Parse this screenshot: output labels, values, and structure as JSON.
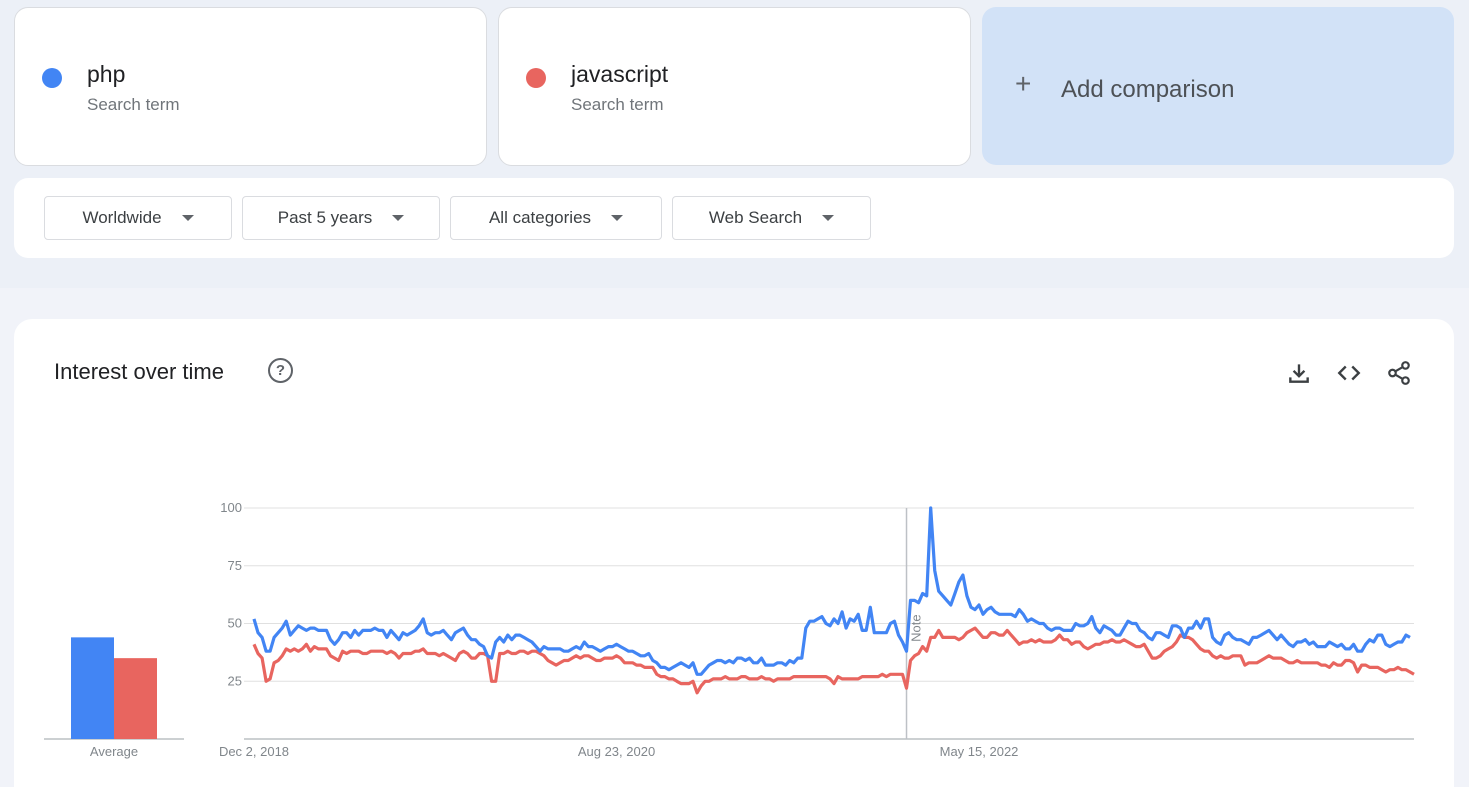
{
  "terms": [
    {
      "name": "php",
      "subtitle": "Search term",
      "color": "#4285f4"
    },
    {
      "name": "javascript",
      "subtitle": "Search term",
      "color": "#e8655f"
    }
  ],
  "add_comparison": {
    "icon": "plus-icon",
    "label": "Add comparison"
  },
  "filters": {
    "region": "Worldwide",
    "time": "Past 5 years",
    "category": "All categories",
    "search_type": "Web Search"
  },
  "chart_section": {
    "title": "Interest over time",
    "icons": [
      "help-icon",
      "download-icon",
      "embed-icon",
      "share-icon"
    ],
    "note_label": "Note"
  },
  "chart_data": {
    "type": "line",
    "title": "Interest over time",
    "x_ticks": [
      "Dec 2, 2018",
      "Aug 23, 2020",
      "May 15, 2022"
    ],
    "x_range": [
      "Dec 2, 2018",
      "Nov 2023"
    ],
    "ylim": [
      0,
      100
    ],
    "y_ticks": [
      25,
      50,
      75,
      100
    ],
    "grid": true,
    "note_marker_date": "Jan 2022",
    "average": {
      "label": "Average",
      "values": {
        "php": 44,
        "javascript": 35
      }
    },
    "series": [
      {
        "name": "php",
        "color": "#4285f4",
        "values": [
          52,
          46,
          44,
          38,
          38,
          44,
          46,
          48,
          51,
          45,
          47,
          49,
          48,
          47,
          48,
          48,
          47,
          47,
          47,
          43,
          41,
          43,
          46,
          46,
          44,
          47,
          45,
          47,
          47,
          47,
          48,
          47,
          47,
          44,
          47,
          45,
          43,
          46,
          45,
          46,
          47,
          49,
          52,
          46,
          45,
          46,
          46,
          47,
          45,
          43,
          46,
          47,
          48,
          45,
          43,
          43,
          41,
          40,
          36,
          35,
          42,
          44,
          42,
          45,
          43,
          45,
          45,
          44,
          43,
          42,
          40,
          38,
          40,
          39,
          39,
          39,
          39,
          38,
          38,
          39,
          40,
          39,
          42,
          40,
          40,
          39,
          38,
          39,
          40,
          40,
          41,
          40,
          39,
          38,
          38,
          37,
          36,
          36,
          37,
          34,
          33,
          31,
          31,
          30,
          31,
          32,
          33,
          32,
          31,
          33,
          28,
          28,
          30,
          32,
          33,
          34,
          34,
          33,
          34,
          33,
          35,
          35,
          34,
          35,
          33,
          33,
          35,
          32,
          32,
          32,
          33,
          33,
          32,
          34,
          33,
          35,
          35,
          48,
          51,
          51,
          52,
          53,
          50,
          49,
          52,
          50,
          55,
          48,
          52,
          51,
          54,
          47,
          47,
          57,
          46,
          46,
          46,
          46,
          50,
          51,
          45,
          42,
          38,
          60,
          60,
          59,
          63,
          62,
          100,
          73,
          64,
          62,
          60,
          58,
          63,
          68,
          71,
          62,
          57,
          56,
          58,
          54,
          56,
          57,
          55,
          54,
          54,
          54,
          54,
          53,
          56,
          54,
          51,
          52,
          51,
          50,
          50,
          48,
          47,
          48,
          48,
          47,
          47,
          47,
          50,
          49,
          49,
          50,
          53,
          48,
          46,
          49,
          48,
          47,
          45,
          45,
          48,
          51,
          50,
          50,
          47,
          46,
          44,
          43,
          46,
          46,
          45,
          44,
          49,
          49,
          48,
          44,
          48,
          48,
          51,
          48,
          52,
          52,
          44,
          42,
          41,
          45,
          46,
          44,
          43,
          43,
          42,
          41,
          44,
          44,
          45,
          46,
          47,
          45,
          43,
          45,
          43,
          41,
          40,
          42,
          42,
          43,
          41,
          42,
          40,
          40,
          40,
          42,
          41,
          40,
          41,
          39,
          39,
          41,
          38,
          38,
          41,
          43,
          42,
          45,
          45,
          41,
          40,
          41,
          42,
          42,
          45,
          44
        ]
      },
      {
        "name": "javascript",
        "color": "#e8655f",
        "values": [
          41,
          37,
          35,
          25,
          26,
          33,
          34,
          36,
          39,
          38,
          39,
          38,
          39,
          41,
          38,
          40,
          39,
          39,
          39,
          36,
          35,
          34,
          38,
          37,
          38,
          38,
          38,
          37,
          37,
          38,
          38,
          38,
          38,
          37,
          38,
          37,
          35,
          37,
          37,
          37,
          38,
          38,
          39,
          37,
          37,
          37,
          36,
          37,
          36,
          35,
          34,
          37,
          38,
          37,
          35,
          35,
          37,
          37,
          36,
          25,
          25,
          37,
          37,
          38,
          37,
          37,
          38,
          38,
          37,
          38,
          38,
          37,
          36,
          34,
          33,
          32,
          33,
          34,
          34,
          35,
          36,
          35,
          36,
          36,
          35,
          34,
          34,
          35,
          35,
          35,
          36,
          35,
          33,
          33,
          33,
          32,
          32,
          31,
          31,
          31,
          28,
          27,
          27,
          26,
          26,
          25,
          24,
          24,
          24,
          25,
          20,
          23,
          25,
          25,
          26,
          26,
          26,
          27,
          26,
          26,
          26,
          27,
          27,
          26,
          26,
          26,
          27,
          26,
          26,
          25,
          26,
          26,
          26,
          26,
          27,
          27,
          27,
          27,
          27,
          27,
          27,
          27,
          27,
          26,
          24,
          27,
          26,
          26,
          26,
          26,
          26,
          27,
          27,
          27,
          27,
          27,
          28,
          27,
          28,
          28,
          28,
          28,
          22,
          34,
          36,
          37,
          40,
          38,
          44,
          44,
          47,
          44,
          44,
          44,
          44,
          43,
          44,
          46,
          47,
          48,
          46,
          44,
          44,
          46,
          46,
          45,
          45,
          47,
          45,
          43,
          41,
          42,
          42,
          43,
          42,
          43,
          42,
          42,
          42,
          43,
          45,
          43,
          43,
          41,
          42,
          42,
          40,
          39,
          40,
          41,
          41,
          42,
          42,
          43,
          42,
          42,
          43,
          42,
          41,
          40,
          40,
          41,
          38,
          35,
          35,
          36,
          38,
          39,
          40,
          42,
          45,
          44,
          44,
          43,
          41,
          39,
          38,
          38,
          36,
          35,
          36,
          35,
          35,
          36,
          36,
          36,
          32,
          33,
          33,
          33,
          34,
          35,
          36,
          35,
          35,
          35,
          34,
          33,
          33,
          34,
          33,
          33,
          33,
          33,
          33,
          32,
          32,
          31,
          33,
          32,
          32,
          34,
          34,
          33,
          29,
          32,
          32,
          31,
          31,
          31,
          30,
          29,
          30,
          30,
          31,
          30,
          30,
          29,
          28
        ]
      }
    ]
  }
}
